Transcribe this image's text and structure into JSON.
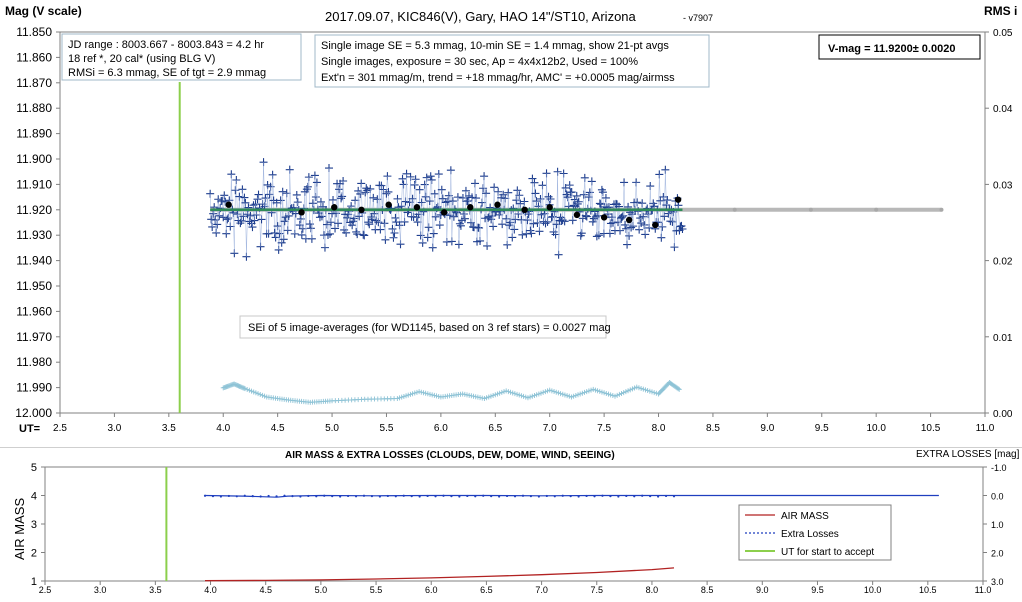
{
  "top": {
    "title": "2017.09.07,  KIC846(V),  Gary,  HAO 14\"/ST10, Arizona",
    "version": "- v7907",
    "ylabel_left": "Mag (V scale)",
    "ylabel_right": "RMS i",
    "xlabel_prefix": "UT=",
    "yticks": [
      "11.850",
      "11.860",
      "11.870",
      "11.880",
      "11.890",
      "11.900",
      "11.910",
      "11.920",
      "11.930",
      "11.940",
      "11.950",
      "11.960",
      "11.970",
      "11.980",
      "11.990",
      "12.000"
    ],
    "rticks": [
      "0.05",
      "0.04",
      "0.03",
      "0.02",
      "0.01",
      "0.00"
    ],
    "xticks": [
      "2.5",
      "3.0",
      "3.5",
      "4.0",
      "4.5",
      "5.0",
      "5.5",
      "6.0",
      "6.5",
      "7.0",
      "7.5",
      "8.0",
      "8.5",
      "9.0",
      "9.5",
      "10.0",
      "10.5",
      "11.0"
    ],
    "box1": [
      "JD range : 8003.667 - 8003.843 =  4.2  hr",
      "18 ref *, 20 cal* (using BLG V)",
      "RMSi = 6.3 mmag, SE of tgt = 2.9 mmag"
    ],
    "box2": [
      "Single image SE = 5.3 mmag, 10-min SE = 1.4 mmag, show 21-pt avgs",
      "Single images, exposure = 30 sec, Ap = 4x4x12b2, Used = 100%",
      "Ext'n = 301 mmag/m, trend = +18 mmag/hr, AMC' = +0.0005 mag/airmss"
    ],
    "vmag": "V-mag = 11.9200± 0.0020",
    "sei_note": "SEi of 5 image-averages (for WD1145, based on 3 ref stars) = 0.0027 mag"
  },
  "bottom": {
    "title": "AIR MASS & EXTRA LOSSES (CLOUDS, DEW, DOME, WIND, SEEING)",
    "ylabel_left": "AIR MASS",
    "ylabel_right": "EXTRA LOSSES [mag]",
    "yticks": [
      "5",
      "4",
      "3",
      "2",
      "1"
    ],
    "rticks": [
      "-1.0",
      "0.0",
      "1.0",
      "2.0",
      "3.0"
    ],
    "xticks": [
      "2.5",
      "3.0",
      "3.5",
      "4.0",
      "4.5",
      "5.0",
      "5.5",
      "6.0",
      "6.5",
      "7.0",
      "7.5",
      "8.0",
      "8.5",
      "9.0",
      "9.5",
      "10.0",
      "10.5",
      "11.0"
    ],
    "legend": [
      "AIR MASS",
      "Extra Losses",
      "UT for start to accept"
    ]
  },
  "colors": {
    "target": "#1f3f8f",
    "averages": "#000000",
    "trend": "#2e8b57",
    "model": "#b8b8b8",
    "rms": "#8ec3d6",
    "accept_line": "#8ccf4c",
    "airmass": "#b22222",
    "extra_losses": "#1f3fbf"
  },
  "chart_data": [
    {
      "type": "scatter",
      "title": "2017.09.07,  KIC846(V),  Gary,  HAO 14\"/ST10, Arizona",
      "xlabel": "UT=",
      "ylabel": "Mag (V scale)",
      "y2label": "RMS i",
      "xlim": [
        2.5,
        11.0
      ],
      "ylim": [
        12.0,
        11.85
      ],
      "y2lim": [
        0.0,
        0.05
      ],
      "series": [
        {
          "kind": "scatter",
          "marker": "plus",
          "x_range": [
            3.88,
            8.22
          ],
          "y_center": 11.92,
          "y_scatter": 0.0063
        },
        {
          "kind": "points",
          "x": [
            4.05,
            4.72,
            5.02,
            5.27,
            5.52,
            5.78,
            6.03,
            6.27,
            6.52,
            6.77,
            7.0,
            7.25,
            7.5,
            7.73,
            7.97,
            8.18
          ],
          "y": [
            11.918,
            11.921,
            11.919,
            11.92,
            11.918,
            11.919,
            11.921,
            11.919,
            11.918,
            11.92,
            11.919,
            11.922,
            11.923,
            11.924,
            11.926,
            11.916
          ]
        },
        {
          "kind": "trend_line",
          "x": [
            3.88,
            8.22
          ],
          "y": [
            11.92,
            11.92
          ]
        },
        {
          "kind": "model_line",
          "x": [
            3.88,
            10.6
          ],
          "y": [
            11.92,
            11.92
          ]
        },
        {
          "kind": "rms",
          "axis": "right",
          "x": [
            4.0,
            4.1,
            4.2,
            4.4,
            4.6,
            4.8,
            5.0,
            5.3,
            5.6,
            5.8,
            6.0,
            6.2,
            6.4,
            6.6,
            6.8,
            7.0,
            7.2,
            7.4,
            7.6,
            7.8,
            8.0,
            8.1,
            8.2
          ],
          "y": [
            0.0033,
            0.0038,
            0.0032,
            0.0021,
            0.0017,
            0.0014,
            0.0016,
            0.0018,
            0.0019,
            0.0028,
            0.0021,
            0.0025,
            0.0019,
            0.0029,
            0.002,
            0.003,
            0.0021,
            0.0031,
            0.0022,
            0.0034,
            0.0025,
            0.004,
            0.003
          ]
        }
      ],
      "annotations": [
        "UT for start to accept = 3.6"
      ]
    },
    {
      "type": "line",
      "title": "AIR MASS & EXTRA LOSSES (CLOUDS, DEW, DOME, WIND, SEEING)",
      "xlabel": "",
      "ylabel": "AIR MASS",
      "y2label": "EXTRA LOSSES [mag]",
      "xlim": [
        2.5,
        11.0
      ],
      "ylim": [
        1,
        5
      ],
      "y2lim": [
        3.0,
        -1.0
      ],
      "series": [
        {
          "name": "AIR MASS",
          "x": [
            3.95,
            4.5,
            5.0,
            5.5,
            6.0,
            6.5,
            7.0,
            7.5,
            8.0,
            8.2
          ],
          "y": [
            1.01,
            1.02,
            1.04,
            1.07,
            1.11,
            1.16,
            1.22,
            1.3,
            1.4,
            1.46
          ]
        },
        {
          "name": "Extra Losses",
          "axis": "right",
          "x": [
            3.95,
            4.3,
            4.6,
            4.7,
            5.0,
            5.5,
            6.0,
            6.5,
            7.0,
            7.5,
            8.0,
            8.2,
            10.6
          ],
          "y": [
            0.0,
            0.02,
            0.06,
            0.02,
            0.0,
            0.01,
            0.0,
            0.0,
            0.01,
            0.0,
            0.0,
            0.0,
            0.0
          ]
        },
        {
          "name": "UT for start to accept",
          "x": [
            3.6,
            3.6
          ],
          "y": [
            1,
            5
          ]
        }
      ]
    }
  ]
}
